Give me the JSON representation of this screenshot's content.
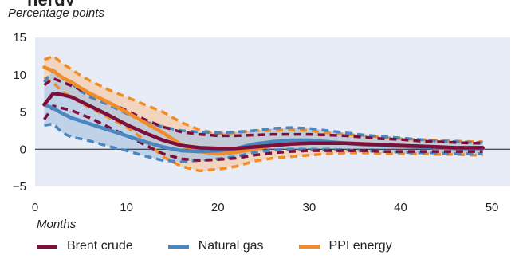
{
  "chart_data": {
    "type": "line",
    "title_fragment": "nergy",
    "units": "Percentage points",
    "xlabel": "Months",
    "xlim": [
      0,
      52
    ],
    "ylim": [
      -5,
      15
    ],
    "x_ticks": [
      0,
      10,
      20,
      30,
      40,
      50
    ],
    "y_ticks": [
      -5,
      0,
      5,
      10,
      15
    ],
    "plot_background": "#e8ecf6",
    "zero_line": true,
    "legend_position": "bottom-left",
    "series": [
      {
        "name": "PPI energy",
        "color": "#f28c28",
        "band_color": "#f6c9a1",
        "x": [
          1,
          2,
          3,
          4,
          5,
          6,
          8,
          10,
          12,
          14,
          16,
          18,
          20,
          22,
          24,
          26,
          28,
          30,
          32,
          34,
          36,
          38,
          40,
          42,
          44,
          46,
          48,
          49
        ],
        "value": [
          11.0,
          10.5,
          9.6,
          9.0,
          8.2,
          7.5,
          6.3,
          5.0,
          3.6,
          2.2,
          0.6,
          -0.3,
          -0.6,
          -0.4,
          0.0,
          0.5,
          0.8,
          0.9,
          0.9,
          0.8,
          0.7,
          0.6,
          0.5,
          0.4,
          0.3,
          0.2,
          0.1,
          0.1
        ],
        "upper": [
          12.0,
          12.5,
          11.5,
          10.7,
          9.9,
          9.2,
          8.0,
          7.0,
          6.0,
          5.0,
          3.6,
          2.6,
          2.1,
          2.2,
          2.5,
          2.5,
          2.6,
          2.5,
          2.2,
          2.0,
          1.8,
          1.6,
          1.4,
          1.3,
          1.2,
          1.1,
          1.0,
          1.0
        ],
        "lower": [
          9.6,
          8.9,
          7.7,
          7.0,
          6.2,
          5.6,
          4.3,
          3.0,
          1.2,
          -1.0,
          -2.3,
          -2.9,
          -2.7,
          -2.3,
          -1.6,
          -1.2,
          -1.0,
          -0.8,
          -0.6,
          -0.5,
          -0.5,
          -0.6,
          -0.6,
          -0.6,
          -0.7,
          -0.7,
          -0.8,
          -0.8
        ]
      },
      {
        "name": "Natural gas",
        "color": "#4a86c0",
        "band_color": "#a9c4e0",
        "x": [
          1,
          2,
          3,
          4,
          5,
          6,
          8,
          10,
          12,
          14,
          16,
          18,
          20,
          22,
          24,
          26,
          28,
          30,
          32,
          34,
          36,
          38,
          40,
          42,
          44,
          46,
          48,
          49
        ],
        "value": [
          6.0,
          5.5,
          4.8,
          4.2,
          3.8,
          3.4,
          2.6,
          1.8,
          1.0,
          0.3,
          -0.2,
          -0.3,
          -0.2,
          0.1,
          0.7,
          1.0,
          1.2,
          1.2,
          1.0,
          0.8,
          0.6,
          0.5,
          0.4,
          0.3,
          0.2,
          0.1,
          0.1,
          0.1
        ],
        "upper": [
          9.0,
          10.6,
          9.6,
          8.8,
          7.8,
          7.0,
          6.0,
          4.8,
          3.7,
          3.0,
          2.5,
          2.3,
          2.2,
          2.3,
          2.5,
          2.8,
          2.9,
          2.8,
          2.5,
          2.2,
          1.9,
          1.7,
          1.5,
          1.3,
          1.1,
          1.0,
          0.9,
          0.9
        ],
        "lower": [
          3.2,
          3.4,
          2.2,
          1.6,
          1.4,
          1.1,
          0.4,
          -0.2,
          -0.9,
          -1.5,
          -1.7,
          -1.5,
          -1.3,
          -1.0,
          -0.4,
          -0.1,
          0.0,
          0.0,
          0.0,
          -0.1,
          -0.2,
          -0.3,
          -0.4,
          -0.5,
          -0.5,
          -0.6,
          -0.6,
          -0.6
        ]
      },
      {
        "name": "Brent crude",
        "color": "#7d0f3d",
        "x": [
          1,
          2,
          3,
          4,
          5,
          6,
          8,
          10,
          12,
          14,
          16,
          18,
          20,
          22,
          24,
          26,
          28,
          30,
          32,
          34,
          36,
          38,
          40,
          42,
          44,
          46,
          48,
          49
        ],
        "value": [
          6.0,
          7.5,
          7.3,
          7.0,
          6.4,
          5.8,
          4.6,
          3.3,
          2.2,
          1.2,
          0.5,
          0.2,
          0.1,
          0.1,
          0.3,
          0.5,
          0.7,
          0.8,
          0.8,
          0.8,
          0.7,
          0.6,
          0.5,
          0.4,
          0.3,
          0.2,
          0.2,
          0.2
        ],
        "upper": [
          8.6,
          9.5,
          9.0,
          8.5,
          8.0,
          7.4,
          6.3,
          5.2,
          4.0,
          3.0,
          2.3,
          2.0,
          1.8,
          1.8,
          1.9,
          2.0,
          2.0,
          2.0,
          1.9,
          1.8,
          1.6,
          1.4,
          1.3,
          1.1,
          1.0,
          0.9,
          0.8,
          0.8
        ],
        "lower": [
          4.0,
          5.8,
          5.5,
          5.2,
          4.7,
          4.2,
          3.0,
          1.8,
          0.6,
          -0.6,
          -1.3,
          -1.5,
          -1.4,
          -1.2,
          -0.8,
          -0.5,
          -0.3,
          -0.2,
          -0.2,
          -0.2,
          -0.2,
          -0.3,
          -0.3,
          -0.3,
          -0.3,
          -0.3,
          -0.3,
          -0.3
        ]
      }
    ],
    "legend": [
      {
        "name": "Brent crude",
        "color": "#7d0f3d"
      },
      {
        "name": "Natural gas",
        "color": "#4a86c0"
      },
      {
        "name": "PPI energy",
        "color": "#f28c28"
      }
    ]
  }
}
